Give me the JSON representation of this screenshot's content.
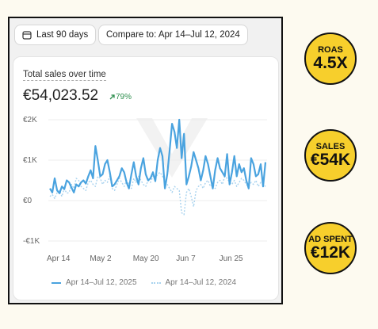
{
  "toolbar": {
    "date_range_label": "Last 90 days",
    "compare_label": "Compare to: Apr 14–Jul 12, 2024"
  },
  "card": {
    "title": "Total sales over time",
    "total_value": "€54,023.52",
    "delta": "79%"
  },
  "legend": {
    "current": "Apr 14–Jul 12, 2025",
    "previous": "Apr 14–Jul 12, 2024"
  },
  "badges": {
    "roas": {
      "label": "ROAS",
      "value": "4.5X"
    },
    "sales": {
      "label": "SALES",
      "value": "€54K"
    },
    "ad_spent": {
      "label": "AD SPENT",
      "value": "€12K"
    }
  },
  "colors": {
    "current_series": "#4aa3df",
    "previous_series": "#a9d3ef",
    "delta_positive": "#2f8f4f",
    "badge_fill": "#f7cf2c"
  },
  "chart_data": {
    "type": "line",
    "ylim": [
      -1000,
      2000
    ],
    "yticks": [
      2000,
      1000,
      0,
      -1000
    ],
    "ytick_labels": [
      "€2K",
      "€1K",
      "€0",
      "-€1K"
    ],
    "x_tick_labels": [
      "Apr 14",
      "May 2",
      "May 20",
      "Jun 7",
      "Jun 25"
    ],
    "x_tick_indices": [
      0,
      18,
      36,
      54,
      72
    ],
    "series": [
      {
        "name": "Apr 14–Jul 12, 2025",
        "values": [
          300,
          200,
          550,
          250,
          180,
          350,
          280,
          500,
          450,
          320,
          200,
          400,
          350,
          450,
          500,
          420,
          600,
          750,
          550,
          1350,
          1000,
          600,
          650,
          900,
          1000,
          700,
          350,
          400,
          500,
          600,
          800,
          700,
          450,
          300,
          650,
          950,
          600,
          400,
          800,
          1050,
          650,
          500,
          550,
          700,
          480,
          1000,
          1300,
          1100,
          300,
          650,
          1250,
          1900,
          1700,
          1300,
          2000,
          1050,
          1650,
          400,
          600,
          850,
          1200,
          1000,
          800,
          500,
          750,
          1100,
          900,
          600,
          300,
          750,
          1050,
          800,
          700,
          600,
          1150,
          400,
          700,
          1100,
          600,
          900,
          700,
          800,
          500,
          300,
          1050,
          900,
          600,
          650,
          900,
          350,
          950
        ]
      },
      {
        "name": "Apr 14–Jul 12, 2024",
        "values": [
          100,
          150,
          50,
          200,
          250,
          100,
          300,
          180,
          200,
          400,
          300,
          550,
          500,
          350,
          300,
          250,
          450,
          500,
          400,
          350,
          600,
          550,
          400,
          500,
          450,
          600,
          300,
          250,
          400,
          550,
          450,
          350,
          500,
          400,
          300,
          550,
          450,
          600,
          500,
          400,
          350,
          500,
          450,
          600,
          550,
          650,
          700,
          600,
          500,
          400,
          300,
          200,
          350,
          300,
          250,
          -300,
          -350,
          200,
          300,
          100,
          -150,
          250,
          350,
          400,
          300,
          450,
          500,
          350,
          400,
          300,
          450,
          500,
          400,
          600,
          550,
          450,
          400,
          500,
          350,
          450,
          550,
          500,
          400,
          350,
          450,
          400,
          500,
          350,
          450,
          400,
          350
        ]
      }
    ]
  }
}
